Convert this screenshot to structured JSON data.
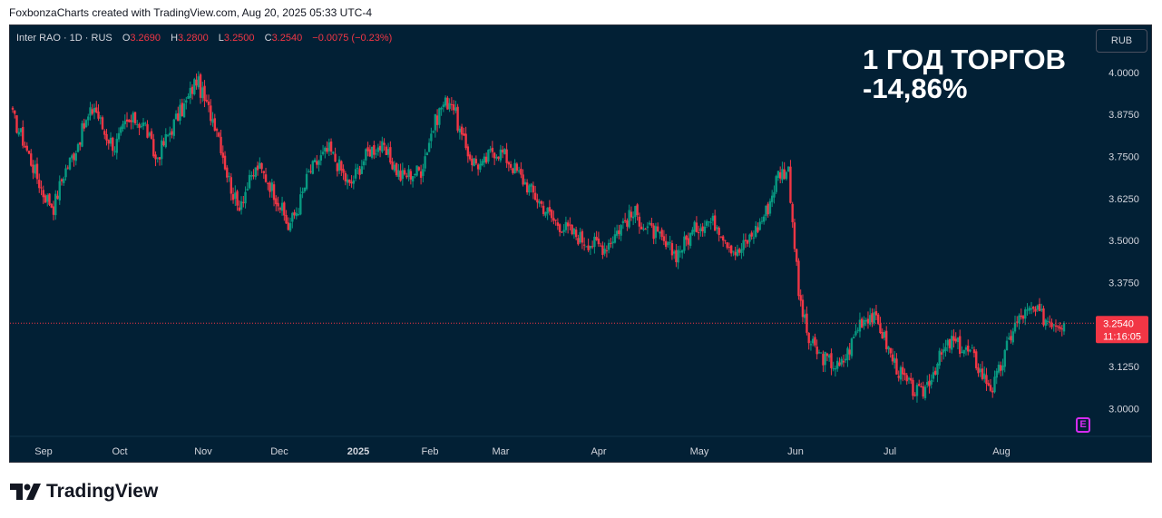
{
  "caption": "FoxbonzaCharts created with TradingView.com, Aug 20, 2025 05:33 UTC-4",
  "legend": {
    "symbol": "Inter RAO · 1D · RUS",
    "o_label": "O",
    "o_value": "3.2690",
    "h_label": "H",
    "h_value": "3.2800",
    "l_label": "L",
    "l_value": "3.2500",
    "c_label": "C",
    "c_value": "3.2540",
    "change": "−0.0075 (−0.23%)"
  },
  "currency": "RUB",
  "annotation": {
    "line1": "1 ГОД ТОРГОВ",
    "line2": "-14,86%"
  },
  "earnings_marker": "E",
  "footer": {
    "brand": "TradingView"
  },
  "colors": {
    "up": "#089981",
    "down": "#f23645",
    "background": "#022035",
    "text": "#d1d4dc"
  },
  "chart_data": {
    "type": "candlestick",
    "symbol": "Inter RAO",
    "interval": "1D",
    "currency": "RUB",
    "x_ticks": [
      "Sep",
      "Oct",
      "Nov",
      "Dec",
      "2025",
      "Feb",
      "Mar",
      "Apr",
      "May",
      "Jun",
      "Jul",
      "Aug"
    ],
    "y_ticks": [
      "4.0000",
      "3.8750",
      "3.7500",
      "3.6250",
      "3.5000",
      "3.3750",
      "3.1250",
      "3.0000"
    ],
    "ylim": [
      2.92,
      4.14
    ],
    "last_price": "3.2540",
    "countdown": "11:16:05",
    "closes": [
      3.87,
      3.8,
      3.72,
      3.64,
      3.6,
      3.7,
      3.76,
      3.84,
      3.9,
      3.82,
      3.78,
      3.84,
      3.86,
      3.84,
      3.74,
      3.8,
      3.86,
      3.91,
      3.98,
      3.9,
      3.84,
      3.7,
      3.6,
      3.66,
      3.72,
      3.68,
      3.62,
      3.54,
      3.6,
      3.7,
      3.74,
      3.77,
      3.72,
      3.66,
      3.72,
      3.77,
      3.78,
      3.74,
      3.69,
      3.7,
      3.71,
      3.82,
      3.9,
      3.92,
      3.8,
      3.74,
      3.72,
      3.77,
      3.76,
      3.72,
      3.68,
      3.64,
      3.6,
      3.56,
      3.54,
      3.52,
      3.5,
      3.49,
      3.48,
      3.52,
      3.56,
      3.58,
      3.54,
      3.52,
      3.48,
      3.46,
      3.5,
      3.54,
      3.56,
      3.55,
      3.5,
      3.46,
      3.5,
      3.54,
      3.6,
      3.7,
      3.71,
      3.34,
      3.2,
      3.16,
      3.14,
      3.12,
      3.18,
      3.26,
      3.28,
      3.24,
      3.16,
      3.1,
      3.06,
      3.04,
      3.1,
      3.16,
      3.2,
      3.18,
      3.16,
      3.1,
      3.06,
      3.14,
      3.24,
      3.28,
      3.29,
      3.27,
      3.26,
      3.254
    ]
  }
}
